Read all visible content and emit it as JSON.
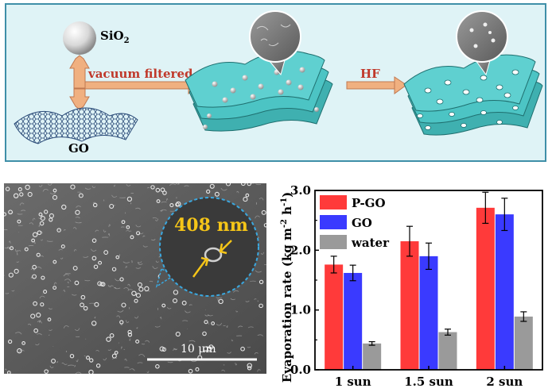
{
  "scheme": {
    "sio2_label": "SiO",
    "sio2_sub": "2",
    "go_label": "GO",
    "step1_label": "vacuum filtered",
    "step2_label": "HF"
  },
  "sem": {
    "pore_size_label": "408 nm",
    "scale_bar_label": "10 μm"
  },
  "colors": {
    "scheme_bg": "#dff3f6",
    "scheme_border": "#3f8fa8",
    "arrow_fill": "#f0b080",
    "arrow_text": "#c0392b",
    "sheet_fill": "#4cc4c4",
    "p_go": "#ff3a3a",
    "go": "#3a3aff",
    "water": "#9a9a9a"
  },
  "chart_data": {
    "type": "bar",
    "categories": [
      "1 sun",
      "1.5 sun",
      "2 sun"
    ],
    "series": [
      {
        "name": "P-GO",
        "values": [
          1.76,
          2.15,
          2.71
        ],
        "errors": [
          0.14,
          0.25,
          0.26
        ],
        "color": "#ff3a3a"
      },
      {
        "name": "GO",
        "values": [
          1.62,
          1.9,
          2.6
        ],
        "errors": [
          0.13,
          0.22,
          0.27
        ],
        "color": "#3a3aff"
      },
      {
        "name": "water",
        "values": [
          0.44,
          0.63,
          0.89
        ],
        "errors": [
          0.03,
          0.05,
          0.08
        ],
        "color": "#9a9a9a"
      }
    ],
    "ylabel": "Evaporation rate (kg m",
    "ylabel_sup1": "-2",
    "ylabel_mid": " h",
    "ylabel_sup2": "-1",
    "ylabel_end": ")",
    "ylim": [
      0,
      3.0
    ],
    "yticks": [
      "0.0",
      "1.0",
      "2.0",
      "3.0"
    ],
    "legend_position": "top-left"
  }
}
